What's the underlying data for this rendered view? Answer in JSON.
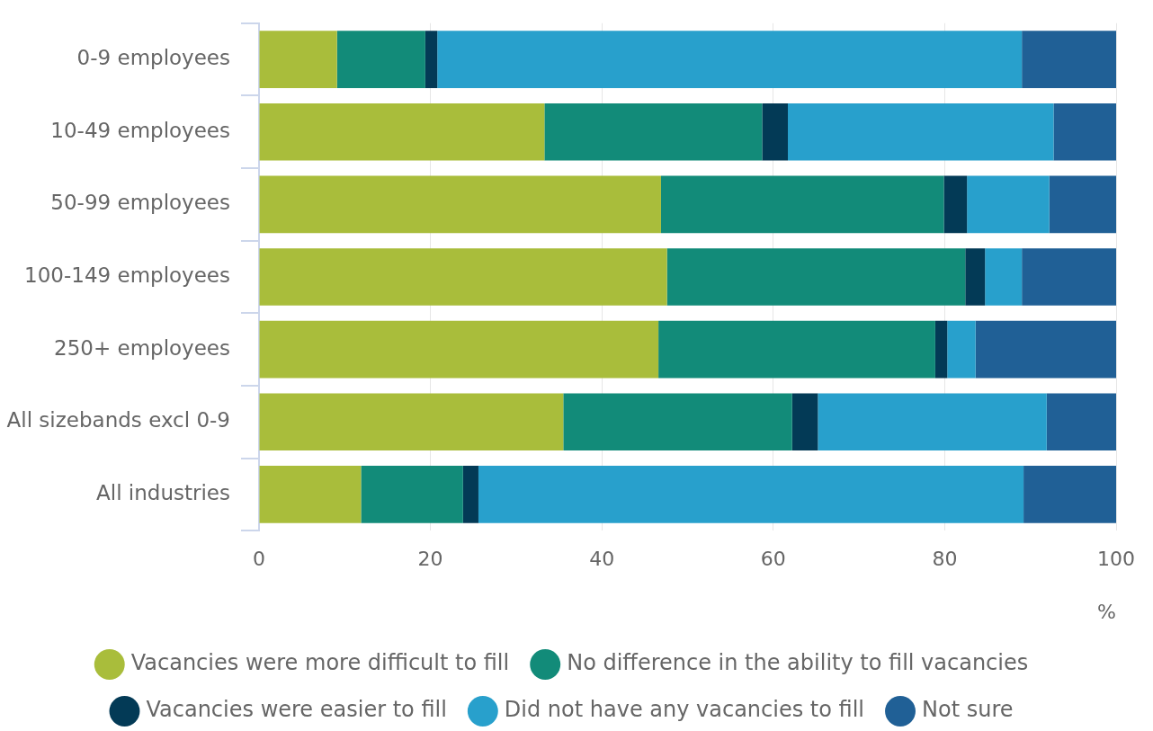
{
  "chart_data": {
    "type": "bar",
    "orientation": "horizontal",
    "stacked": true,
    "categories": [
      "0-9 employees",
      "10-49 employees",
      "50-99 employees",
      "100-149 employees",
      "250+ employees",
      "All sizebands excl 0-9",
      "All industries"
    ],
    "series": [
      {
        "name": "Vacancies were more difficult to fill",
        "color": "#a9bd3b",
        "values": [
          9.1,
          33.3,
          46.9,
          47.6,
          46.6,
          35.5,
          11.9
        ]
      },
      {
        "name": "No difference in the ability to fill vacancies",
        "color": "#128b79",
        "values": [
          10.3,
          25.4,
          33.0,
          34.8,
          32.3,
          26.7,
          11.9
        ]
      },
      {
        "name": "Vacancies were easier to fill",
        "color": "#033a56",
        "values": [
          1.4,
          3.0,
          2.7,
          2.3,
          1.4,
          3.0,
          1.8
        ]
      },
      {
        "name": "Did not have any vacancies to fill",
        "color": "#28a0cc",
        "values": [
          68.2,
          31.0,
          9.6,
          4.3,
          3.3,
          26.7,
          63.6
        ]
      },
      {
        "name": "Not sure",
        "color": "#206096",
        "values": [
          11.0,
          7.3,
          7.8,
          11.0,
          16.4,
          8.1,
          10.8
        ]
      }
    ],
    "xlim": [
      0,
      100
    ],
    "xticks": [
      0,
      20,
      40,
      60,
      80,
      100
    ],
    "xlabel": "%",
    "grid": "x",
    "legend": "bottom"
  }
}
